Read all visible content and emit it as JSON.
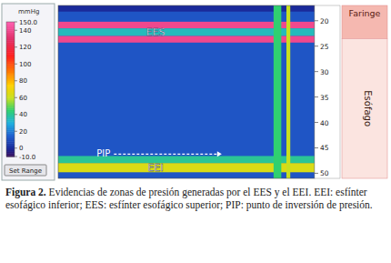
{
  "chart_data": {
    "type": "heatmap",
    "xlim": [
      0,
      100
    ],
    "ylim": [
      17,
      51
    ],
    "yticks": [
      20,
      25,
      30,
      35,
      40,
      45,
      50
    ],
    "tick_labels": "y",
    "colorbar": {
      "label": "mmHg",
      "range": [
        -10,
        150
      ],
      "ticks": [
        {
          "value": 150,
          "label": "150.0"
        },
        140,
        120,
        100,
        80,
        60,
        40,
        20,
        0,
        {
          "value": -10,
          "label": "-10.0"
        }
      ]
    },
    "bands": [
      {
        "x": [
          0,
          100
        ],
        "y": [
          17,
          51
        ],
        "pressure": 12
      },
      {
        "x": [
          0,
          100
        ],
        "y": [
          17,
          18.2
        ],
        "pressure": 0
      },
      {
        "x": [
          0,
          100
        ],
        "y": [
          20.2,
          21.5
        ],
        "pressure": 140
      },
      {
        "x": [
          0,
          100
        ],
        "y": [
          21.5,
          23
        ],
        "pressure": 35,
        "label": "EES"
      },
      {
        "x": [
          0,
          100
        ],
        "y": [
          23,
          24.3
        ],
        "pressure": 140
      },
      {
        "x": [
          0,
          100
        ],
        "y": [
          46.6,
          48
        ],
        "pressure": 40
      },
      {
        "x": [
          0,
          100
        ],
        "y": [
          48,
          49.8
        ],
        "pressure": 65,
        "label": "EEI"
      },
      {
        "x": [
          84,
          87
        ],
        "y": [
          17,
          51
        ],
        "pressure": 45
      },
      {
        "x": [
          89,
          90.5
        ],
        "y": [
          17,
          51
        ],
        "pressure": 60
      }
    ],
    "annotations": [
      {
        "text": "PIP",
        "y": 47.3
      }
    ],
    "regions": [
      {
        "text": "Faringe",
        "y": [
          17,
          23.5
        ]
      },
      {
        "text": "Esófago",
        "y": [
          23.5,
          51
        ]
      }
    ],
    "button": "Set Range"
  },
  "caption": {
    "label": "Figura 2.",
    "text": "Evidencias de zonas de presión generadas por el EES y el EEI. EEI: esfínter esofágico inferior; EES: esfínter esofágico superior; PIP: punto de inversión de presión."
  }
}
